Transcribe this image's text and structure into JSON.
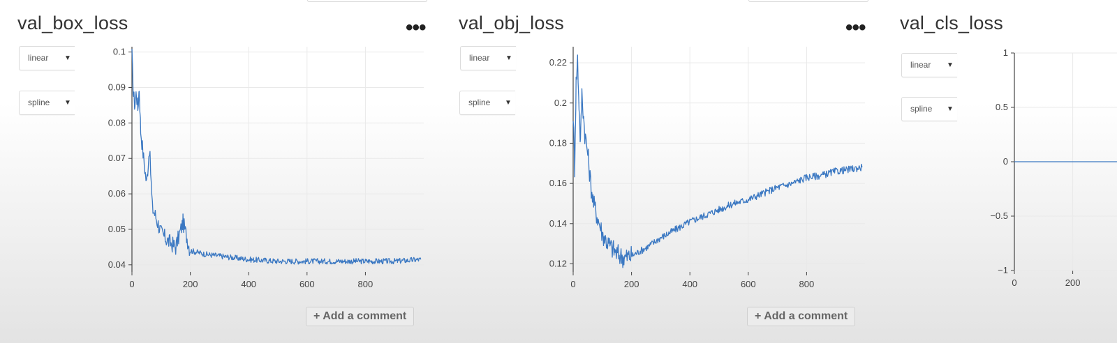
{
  "panels": [
    {
      "title": "val_box_loss",
      "scale_select": "linear",
      "smooth_select": "spline",
      "menu_icon": "more-dots-icon",
      "comment_label": "+ Add a comment"
    },
    {
      "title": "val_obj_loss",
      "scale_select": "linear",
      "smooth_select": "spline",
      "menu_icon": "more-dots-icon",
      "comment_label": "+ Add a comment"
    },
    {
      "title": "val_cls_loss",
      "scale_select": "linear",
      "smooth_select": "spline"
    }
  ],
  "colors": {
    "line": "#3b78c2",
    "grid": "#e9e9e9",
    "axis": "#444444"
  },
  "chart_data": [
    {
      "type": "line",
      "title": "val_box_loss",
      "xlim": [
        0,
        1000
      ],
      "ylim": [
        0.038,
        0.1015
      ],
      "xticks": [
        0,
        200,
        400,
        600,
        800
      ],
      "yticks": [
        0.04,
        0.05,
        0.06,
        0.07,
        0.08,
        0.09,
        0.1
      ],
      "ytick_labels": [
        "0.04",
        "0.05",
        "0.06",
        "0.07",
        "0.08",
        "0.09",
        "0.1"
      ],
      "grid": true,
      "series": [
        {
          "x": [
            0,
            5,
            10,
            15,
            20,
            25,
            30,
            40,
            50,
            60,
            70,
            80,
            100,
            120,
            150,
            175,
            200,
            250,
            300,
            350,
            400,
            500,
            600,
            700,
            800,
            900,
            990
          ],
          "y": [
            0.099,
            0.088,
            0.085,
            0.089,
            0.084,
            0.09,
            0.078,
            0.07,
            0.063,
            0.073,
            0.056,
            0.054,
            0.049,
            0.047,
            0.045,
            0.052,
            0.044,
            0.043,
            0.0425,
            0.042,
            0.0415,
            0.041,
            0.041,
            0.041,
            0.041,
            0.041,
            0.0415
          ],
          "noise": 0.0008
        }
      ]
    },
    {
      "type": "line",
      "title": "val_obj_loss",
      "xlim": [
        0,
        1000
      ],
      "ylim": [
        0.116,
        0.228
      ],
      "xticks": [
        0,
        200,
        400,
        600,
        800
      ],
      "yticks": [
        0.12,
        0.14,
        0.16,
        0.18,
        0.2,
        0.22
      ],
      "ytick_labels": [
        "0.12",
        "0.14",
        "0.16",
        "0.18",
        "0.2",
        "0.22"
      ],
      "grid": true,
      "series": [
        {
          "x": [
            0,
            5,
            10,
            15,
            20,
            25,
            30,
            40,
            50,
            60,
            70,
            80,
            90,
            100,
            120,
            150,
            175,
            200,
            250,
            300,
            350,
            400,
            450,
            500,
            550,
            600,
            650,
            700,
            750,
            800,
            850,
            900,
            950,
            990
          ],
          "y": [
            0.195,
            0.168,
            0.21,
            0.222,
            0.2,
            0.18,
            0.205,
            0.185,
            0.175,
            0.16,
            0.15,
            0.145,
            0.14,
            0.135,
            0.13,
            0.125,
            0.123,
            0.124,
            0.128,
            0.133,
            0.137,
            0.141,
            0.144,
            0.147,
            0.15,
            0.152,
            0.155,
            0.158,
            0.16,
            0.163,
            0.164,
            0.166,
            0.167,
            0.168
          ],
          "noise": 0.0018
        }
      ]
    },
    {
      "type": "line",
      "title": "val_cls_loss",
      "xlim": [
        0,
        1000
      ],
      "ylim": [
        -1,
        1
      ],
      "xticks": [
        0,
        200
      ],
      "yticks": [
        -1,
        -0.5,
        0,
        0.5,
        1
      ],
      "ytick_labels": [
        "−1",
        "−0.5",
        "0",
        "0.5",
        "1"
      ],
      "grid": true,
      "series": [
        {
          "x": [
            0,
            990
          ],
          "y": [
            0,
            0
          ],
          "noise": 0
        }
      ]
    }
  ]
}
